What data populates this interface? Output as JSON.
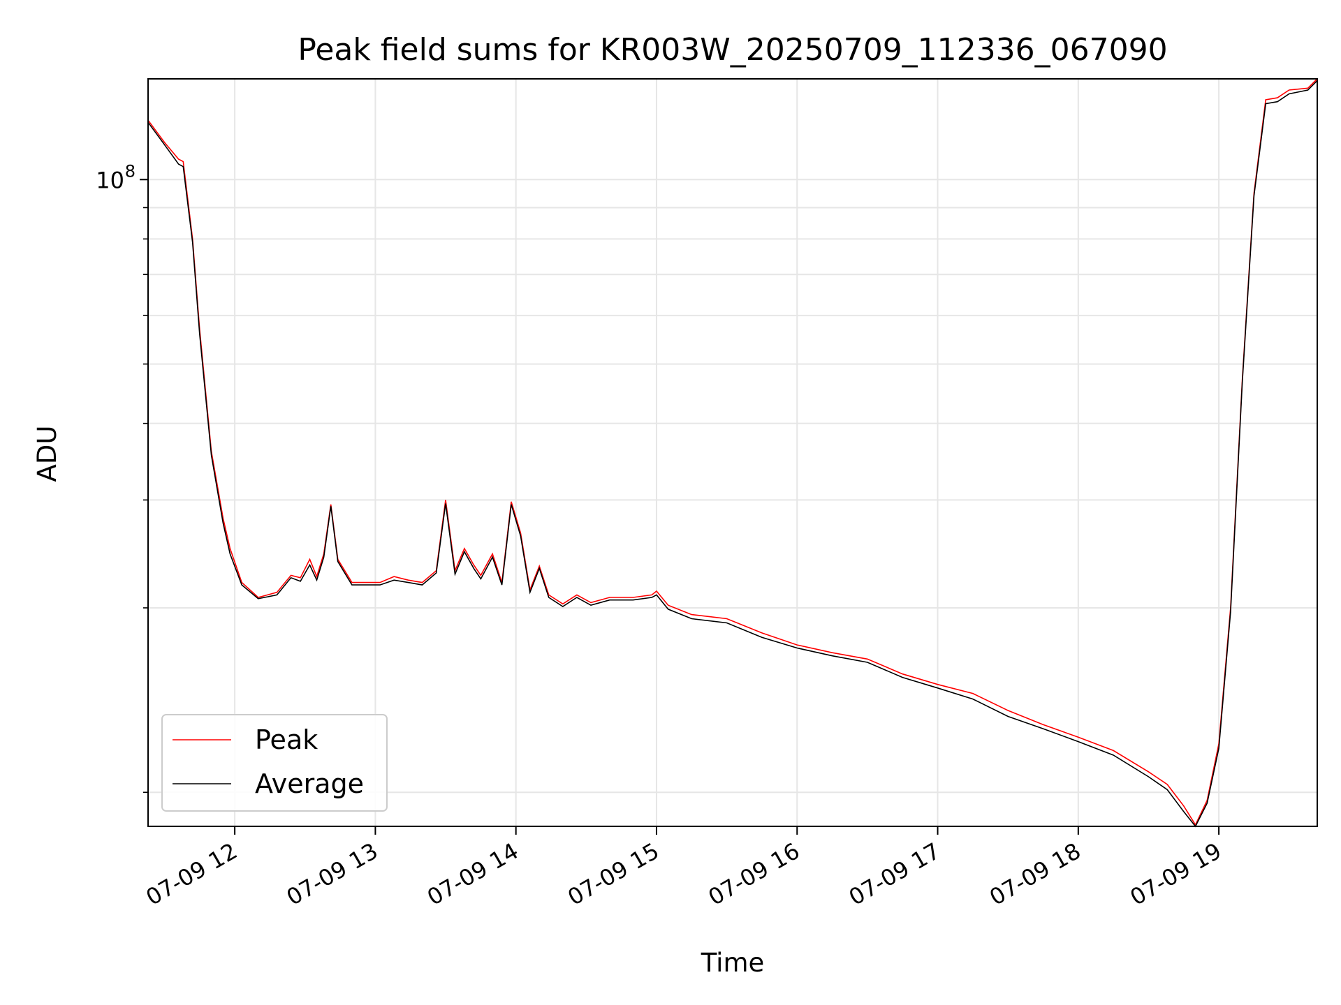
{
  "chart_data": {
    "type": "line",
    "title": "Peak field sums for KR003W_20250709_112336_067090",
    "xlabel": "Time",
    "ylabel": "ADU",
    "y_scale": "log",
    "ylim": [
      8800000,
      146000000
    ],
    "xlim": [
      "07-09 11:23",
      "07-09 19:42"
    ],
    "grid": true,
    "legend_position": "lower-left",
    "x_tick_labels": [
      "07-09 12",
      "07-09 13",
      "07-09 14",
      "07-09 15",
      "07-09 16",
      "07-09 17",
      "07-09 18",
      "07-09 19"
    ],
    "x_ticks": [
      "07-09 12:00",
      "07-09 13:00",
      "07-09 14:00",
      "07-09 15:00",
      "07-09 16:00",
      "07-09 17:00",
      "07-09 18:00",
      "07-09 19:00"
    ],
    "y_tick_label_major": {
      "base": "10",
      "exponent": "8",
      "value": 100000000
    },
    "y_minor_ticks": [
      10000000,
      20000000,
      30000000,
      40000000,
      50000000,
      60000000,
      70000000,
      80000000,
      90000000
    ],
    "x": [
      "07-09 11:23",
      "07-09 11:30",
      "07-09 11:36",
      "07-09 11:38",
      "07-09 11:42",
      "07-09 11:45",
      "07-09 11:50",
      "07-09 11:55",
      "07-09 11:58",
      "07-09 12:03",
      "07-09 12:10",
      "07-09 12:18",
      "07-09 12:24",
      "07-09 12:28",
      "07-09 12:32",
      "07-09 12:35",
      "07-09 12:38",
      "07-09 12:41",
      "07-09 12:44",
      "07-09 12:50",
      "07-09 12:56",
      "07-09 13:02",
      "07-09 13:08",
      "07-09 13:14",
      "07-09 13:20",
      "07-09 13:26",
      "07-09 13:30",
      "07-09 13:34",
      "07-09 13:38",
      "07-09 13:42",
      "07-09 13:45",
      "07-09 13:50",
      "07-09 13:54",
      "07-09 13:58",
      "07-09 14:02",
      "07-09 14:06",
      "07-09 14:10",
      "07-09 14:14",
      "07-09 14:20",
      "07-09 14:26",
      "07-09 14:32",
      "07-09 14:40",
      "07-09 14:50",
      "07-09 14:58",
      "07-09 15:00",
      "07-09 15:05",
      "07-09 15:15",
      "07-09 15:30",
      "07-09 15:45",
      "07-09 16:00",
      "07-09 16:15",
      "07-09 16:30",
      "07-09 16:45",
      "07-09 17:00",
      "07-09 17:15",
      "07-09 17:30",
      "07-09 17:45",
      "07-09 18:00",
      "07-09 18:15",
      "07-09 18:30",
      "07-09 18:38",
      "07-09 18:45",
      "07-09 18:50",
      "07-09 18:55",
      "07-09 19:00",
      "07-09 19:05",
      "07-09 19:10",
      "07-09 19:15",
      "07-09 19:20",
      "07-09 19:25",
      "07-09 19:30",
      "07-09 19:38",
      "07-09 19:42"
    ],
    "series": [
      {
        "name": "Peak",
        "color": "#ff0000",
        "values": [
          125000000,
          115000000,
          108000000,
          107000000,
          80000000,
          57000000,
          36000000,
          28000000,
          25000000,
          22000000,
          20800000,
          21200000,
          22600000,
          22400000,
          24000000,
          22500000,
          24500000,
          29500000,
          24000000,
          22000000,
          22000000,
          22000000,
          22500000,
          22200000,
          22000000,
          23000000,
          30000000,
          23000000,
          25000000,
          23500000,
          22600000,
          24500000,
          22000000,
          29800000,
          26500000,
          21400000,
          23400000,
          21000000,
          20300000,
          21000000,
          20400000,
          20800000,
          20800000,
          21000000,
          21300000,
          20200000,
          19500000,
          19200000,
          18200000,
          17400000,
          16900000,
          16500000,
          15600000,
          15000000,
          14500000,
          13600000,
          12900000,
          12300000,
          11700000,
          10800000,
          10300000,
          9500000,
          8850000,
          9700000,
          12000000,
          20000000,
          47000000,
          95000000,
          135000000,
          136000000,
          140000000,
          141000000,
          146000000
        ]
      },
      {
        "name": "Average",
        "color": "#000000",
        "values": [
          124000000,
          114000000,
          106000000,
          105000000,
          79000000,
          56000000,
          35500000,
          27500000,
          24500000,
          21800000,
          20700000,
          21000000,
          22400000,
          22100000,
          23500000,
          22200000,
          24200000,
          29300000,
          23800000,
          21800000,
          21800000,
          21800000,
          22200000,
          22000000,
          21800000,
          22800000,
          29600000,
          22700000,
          24700000,
          23200000,
          22300000,
          24200000,
          21800000,
          29500000,
          26200000,
          21200000,
          23200000,
          20800000,
          20100000,
          20800000,
          20200000,
          20600000,
          20600000,
          20800000,
          21000000,
          19900000,
          19200000,
          18900000,
          17900000,
          17200000,
          16700000,
          16300000,
          15400000,
          14800000,
          14200000,
          13300000,
          12700000,
          12100000,
          11500000,
          10600000,
          10100000,
          9300000,
          8800000,
          9600000,
          11800000,
          19700000,
          46500000,
          94000000,
          133000000,
          134000000,
          138000000,
          140000000,
          145000000
        ]
      }
    ]
  }
}
